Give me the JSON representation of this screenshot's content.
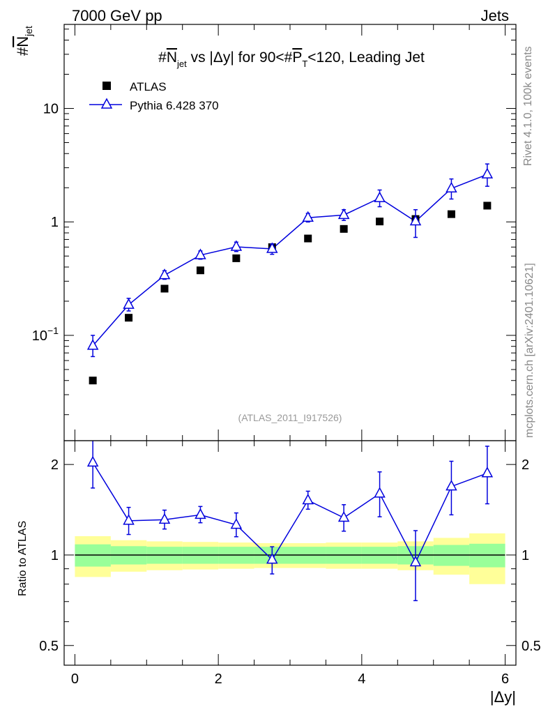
{
  "header": {
    "energy_label": "7000 GeV pp",
    "category_label": "Jets"
  },
  "side_texts": {
    "rivet": "Rivet 4.1.0,  100k events",
    "mcplots": "mcplots.cern.ch [arXiv:2401.10621]"
  },
  "analysis_id": "(ATLAS_2011_I917526)",
  "chart_data": {
    "type": "scatter",
    "title": "#N_jet vs |Δy| for 90<#P_T<120, Leading Jet",
    "title_parts": {
      "prefix": "#",
      "n": "N",
      "n_sub": "jet",
      "mid": " vs |Δy| for 90<#",
      "p": "P",
      "p_sub": "T",
      "suffix": "<120, Leading Jet"
    },
    "ylabel": {
      "hash": "#",
      "n": "N",
      "sub": "jet"
    },
    "xlabel": "|Δy|",
    "ratio_ylabel": "Ratio to ATLAS",
    "xlim": [
      -0.15,
      6.15
    ],
    "ylim": [
      0.0118,
      55
    ],
    "y_scale": "log",
    "ratio_ylim": [
      0.43,
      2.4
    ],
    "x_ticks": [
      0,
      2,
      4,
      6
    ],
    "y_ticks": [
      {
        "value": 0.1,
        "base": "10",
        "exp": "−1"
      },
      {
        "value": 1,
        "base": "1",
        "exp": ""
      },
      {
        "value": 10,
        "base": "10",
        "exp": ""
      }
    ],
    "ratio_ticks": [
      {
        "value": 0.5,
        "label": "0.5"
      },
      {
        "value": 1,
        "label": "1"
      },
      {
        "value": 2,
        "label": "2"
      }
    ],
    "legend": {
      "position": "top-left",
      "entries": [
        "ATLAS",
        "Pythia 6.428 370"
      ]
    },
    "series": [
      {
        "name": "ATLAS",
        "marker": "square",
        "color": "#000000",
        "x": [
          0.25,
          0.75,
          1.25,
          1.75,
          2.25,
          2.75,
          3.25,
          3.75,
          4.25,
          4.75,
          5.25,
          5.75
        ],
        "values": [
          0.04,
          0.143,
          0.258,
          0.374,
          0.478,
          0.599,
          0.714,
          0.867,
          1.008,
          1.06,
          1.17,
          1.39
        ]
      },
      {
        "name": "Pythia 6.428 370",
        "marker": "triangle-open",
        "color": "#0000dd",
        "x": [
          0.25,
          0.75,
          1.25,
          1.75,
          2.25,
          2.75,
          3.25,
          3.75,
          4.25,
          4.75,
          5.25,
          5.75
        ],
        "values": [
          0.081,
          0.186,
          0.339,
          0.509,
          0.603,
          0.578,
          1.088,
          1.15,
          1.62,
          1.01,
          1.97,
          2.62
        ],
        "err_lo": [
          0.016,
          0.022,
          0.027,
          0.04,
          0.055,
          0.06,
          0.09,
          0.12,
          0.26,
          0.28,
          0.38,
          0.56
        ],
        "err_hi": [
          0.019,
          0.026,
          0.032,
          0.045,
          0.06,
          0.06,
          0.1,
          0.13,
          0.29,
          0.27,
          0.42,
          0.62
        ]
      }
    ],
    "ratio": {
      "x": [
        0.25,
        0.75,
        1.25,
        1.75,
        2.25,
        2.75,
        3.25,
        3.75,
        4.25,
        4.75,
        5.25,
        5.75
      ],
      "values": [
        2.03,
        1.3,
        1.31,
        1.36,
        1.26,
        0.965,
        1.52,
        1.33,
        1.6,
        0.945,
        1.69,
        1.87
      ],
      "err_lo": [
        0.36,
        0.13,
        0.09,
        0.08,
        0.11,
        0.1,
        0.1,
        0.13,
        0.26,
        0.24,
        0.33,
        0.39
      ],
      "err_hi": [
        0.38,
        0.14,
        0.1,
        0.09,
        0.12,
        0.1,
        0.11,
        0.14,
        0.29,
        0.26,
        0.36,
        0.43
      ],
      "bands": {
        "inner_color": "#99ff99",
        "outer_color": "#ffff99",
        "bins": [
          {
            "xlo": 0.0,
            "xhi": 0.5,
            "inner": [
              0.915,
              1.085
            ],
            "outer": [
              0.845,
              1.155
            ]
          },
          {
            "xlo": 0.5,
            "xhi": 1.0,
            "inner": [
              0.93,
              1.07
            ],
            "outer": [
              0.88,
              1.12
            ]
          },
          {
            "xlo": 1.0,
            "xhi": 1.5,
            "inner": [
              0.935,
              1.065
            ],
            "outer": [
              0.89,
              1.11
            ]
          },
          {
            "xlo": 1.5,
            "xhi": 2.0,
            "inner": [
              0.935,
              1.065
            ],
            "outer": [
              0.895,
              1.105
            ]
          },
          {
            "xlo": 2.0,
            "xhi": 2.5,
            "inner": [
              0.935,
              1.065
            ],
            "outer": [
              0.9,
              1.1
            ]
          },
          {
            "xlo": 2.5,
            "xhi": 3.0,
            "inner": [
              0.935,
              1.065
            ],
            "outer": [
              0.905,
              1.095
            ]
          },
          {
            "xlo": 3.0,
            "xhi": 3.5,
            "inner": [
              0.935,
              1.065
            ],
            "outer": [
              0.905,
              1.095
            ]
          },
          {
            "xlo": 3.5,
            "xhi": 4.0,
            "inner": [
              0.935,
              1.065
            ],
            "outer": [
              0.9,
              1.1
            ]
          },
          {
            "xlo": 4.0,
            "xhi": 4.5,
            "inner": [
              0.935,
              1.065
            ],
            "outer": [
              0.9,
              1.1
            ]
          },
          {
            "xlo": 4.5,
            "xhi": 5.0,
            "inner": [
              0.93,
              1.07
            ],
            "outer": [
              0.89,
              1.11
            ]
          },
          {
            "xlo": 5.0,
            "xhi": 5.5,
            "inner": [
              0.92,
              1.08
            ],
            "outer": [
              0.86,
              1.14
            ]
          },
          {
            "xlo": 5.5,
            "xhi": 6.0,
            "inner": [
              0.91,
              1.09
            ],
            "outer": [
              0.8,
              1.18
            ]
          }
        ]
      }
    }
  }
}
